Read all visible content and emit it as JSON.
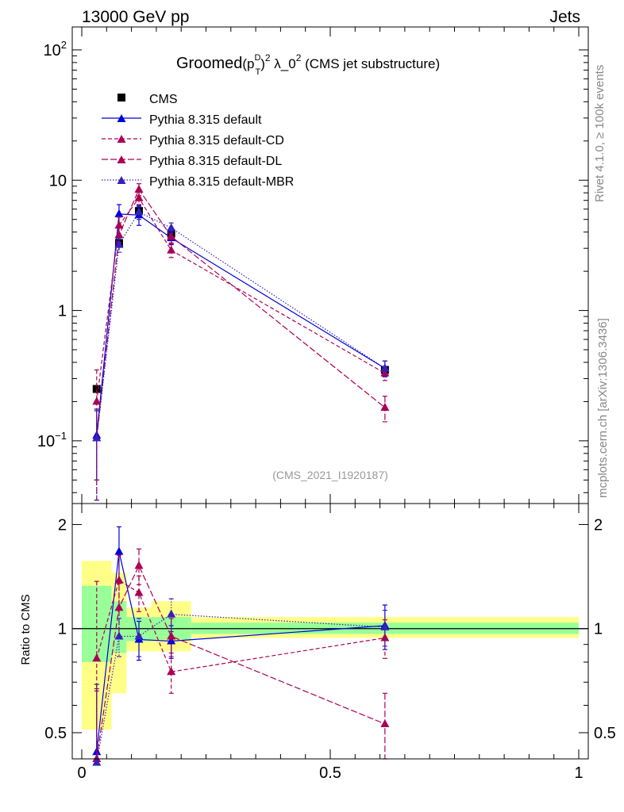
{
  "header": {
    "energy_label": "13000 GeV pp",
    "process_label": "Jets",
    "side_rivet": "Rivet 4.1.0, ≥ 100k events",
    "side_mcplots": "mcplots.cern.ch [arXiv:1306.3436]",
    "analysis_id": "(CMS_2021_I1920187)"
  },
  "chart_data": [
    {
      "type": "line",
      "panel": "main",
      "title_parts": {
        "prefix": "Groomed",
        "var": "(p",
        "sup_d": "D",
        "sub_t": "T",
        "close": ")",
        "sup_2": "2",
        "rest": " λ_0",
        "sup_2b": "2",
        "suffix": " (CMS jet substructure)"
      },
      "yscale": "log",
      "ylim": [
        0.033,
        150
      ],
      "xlim": [
        0,
        1
      ],
      "y_ticks": [
        {
          "value": 0.1,
          "label": "10",
          "sup": "−1"
        },
        {
          "value": 1,
          "label": "1",
          "sup": ""
        },
        {
          "value": 10,
          "label": "10",
          "sup": ""
        },
        {
          "value": 100,
          "label": "10",
          "sup": "2"
        }
      ],
      "x": [
        0.03,
        0.075,
        0.115,
        0.18,
        0.61
      ],
      "x_bins": [
        [
          0.0,
          0.06
        ],
        [
          0.06,
          0.09
        ],
        [
          0.09,
          0.14
        ],
        [
          0.14,
          0.22
        ],
        [
          0.22,
          1.0
        ]
      ],
      "series": [
        {
          "name": "CMS",
          "color": "#000000",
          "style": "data",
          "marker": "square",
          "values": [
            0.25,
            3.3,
            5.8,
            3.9,
            0.35
          ],
          "err": [
            0.02,
            0.35,
            0.5,
            0.3,
            0.03
          ]
        },
        {
          "name": "Pythia 8.315 default",
          "color": "#0000dd",
          "style": "solid",
          "marker": "triangle",
          "values": [
            0.11,
            5.5,
            5.4,
            3.6,
            0.36
          ],
          "err": [
            0.06,
            1.0,
            0.9,
            0.4,
            0.05
          ]
        },
        {
          "name": "Pythia 8.315 default-CD",
          "color": "#aa0055",
          "style": "dash",
          "marker": "triangle",
          "values": [
            0.2,
            4.5,
            7.3,
            2.9,
            0.33
          ],
          "err": [
            0.15,
            0.7,
            0.8,
            0.35,
            0.04
          ]
        },
        {
          "name": "Pythia 8.315 default-DL",
          "color": "#aa0055",
          "style": "longdash",
          "marker": "triangle",
          "values": [
            0.105,
            3.8,
            8.5,
            3.7,
            0.18
          ],
          "err": [
            0.07,
            0.5,
            0.9,
            0.4,
            0.04
          ]
        },
        {
          "name": "Pythia 8.315 default-MBR",
          "color": "#3322bb",
          "style": "dot",
          "marker": "triangle",
          "values": [
            0.105,
            3.2,
            5.7,
            4.3,
            0.36
          ],
          "err": [
            0.07,
            0.4,
            0.7,
            0.4,
            0.05
          ]
        }
      ]
    },
    {
      "type": "line",
      "panel": "ratio",
      "ylabel": "Ratio to CMS",
      "yscale": "log",
      "ylim": [
        0.42,
        2.3
      ],
      "xlim": [
        0,
        1
      ],
      "y_ticks": [
        {
          "value": 0.5,
          "label": "0.5"
        },
        {
          "value": 1,
          "label": "1"
        },
        {
          "value": 2,
          "label": "2"
        }
      ],
      "x_ticks": [
        {
          "value": 0,
          "label": "0"
        },
        {
          "value": 0.5,
          "label": "0.5"
        },
        {
          "value": 1,
          "label": "1"
        }
      ],
      "bands": [
        {
          "x": [
            0.0,
            0.06
          ],
          "inner": [
            0.8,
            1.33
          ],
          "outer": [
            0.51,
            1.57
          ]
        },
        {
          "x": [
            0.06,
            0.09
          ],
          "inner": [
            0.85,
            1.2
          ],
          "outer": [
            0.65,
            1.45
          ]
        },
        {
          "x": [
            0.09,
            0.14
          ],
          "inner": [
            0.92,
            1.08
          ],
          "outer": [
            0.86,
            1.15
          ]
        },
        {
          "x": [
            0.14,
            0.22
          ],
          "inner": [
            0.93,
            1.08
          ],
          "outer": [
            0.86,
            1.2
          ]
        },
        {
          "x": [
            0.22,
            1.0
          ],
          "inner": [
            0.965,
            1.04
          ],
          "outer": [
            0.94,
            1.08
          ]
        }
      ],
      "band_colors": {
        "inner": "#99ff99",
        "outer": "#ffff88"
      },
      "x": [
        0.03,
        0.075,
        0.115,
        0.18,
        0.61
      ],
      "series": [
        {
          "name": "Pythia 8.315 default",
          "color": "#0000dd",
          "style": "solid",
          "values": [
            0.44,
            1.67,
            0.93,
            0.92,
            1.02
          ],
          "err": [
            0.25,
            0.3,
            0.12,
            0.1,
            0.15
          ]
        },
        {
          "name": "Pythia 8.315 default-CD",
          "color": "#aa0055",
          "style": "dash",
          "values": [
            0.82,
            1.38,
            1.27,
            0.75,
            0.94
          ],
          "err": [
            0.55,
            0.25,
            0.15,
            0.1,
            0.12
          ]
        },
        {
          "name": "Pythia 8.315 default-DL",
          "color": "#aa0055",
          "style": "longdash",
          "values": [
            0.42,
            1.15,
            1.52,
            0.95,
            0.53
          ],
          "err": [
            0.25,
            0.2,
            0.18,
            0.12,
            0.12
          ]
        },
        {
          "name": "Pythia 8.315 default-MBR",
          "color": "#3322bb",
          "style": "dot",
          "values": [
            0.41,
            0.95,
            0.95,
            1.1,
            1.01
          ],
          "err": [
            0.25,
            0.12,
            0.12,
            0.12,
            0.12
          ]
        }
      ]
    }
  ]
}
